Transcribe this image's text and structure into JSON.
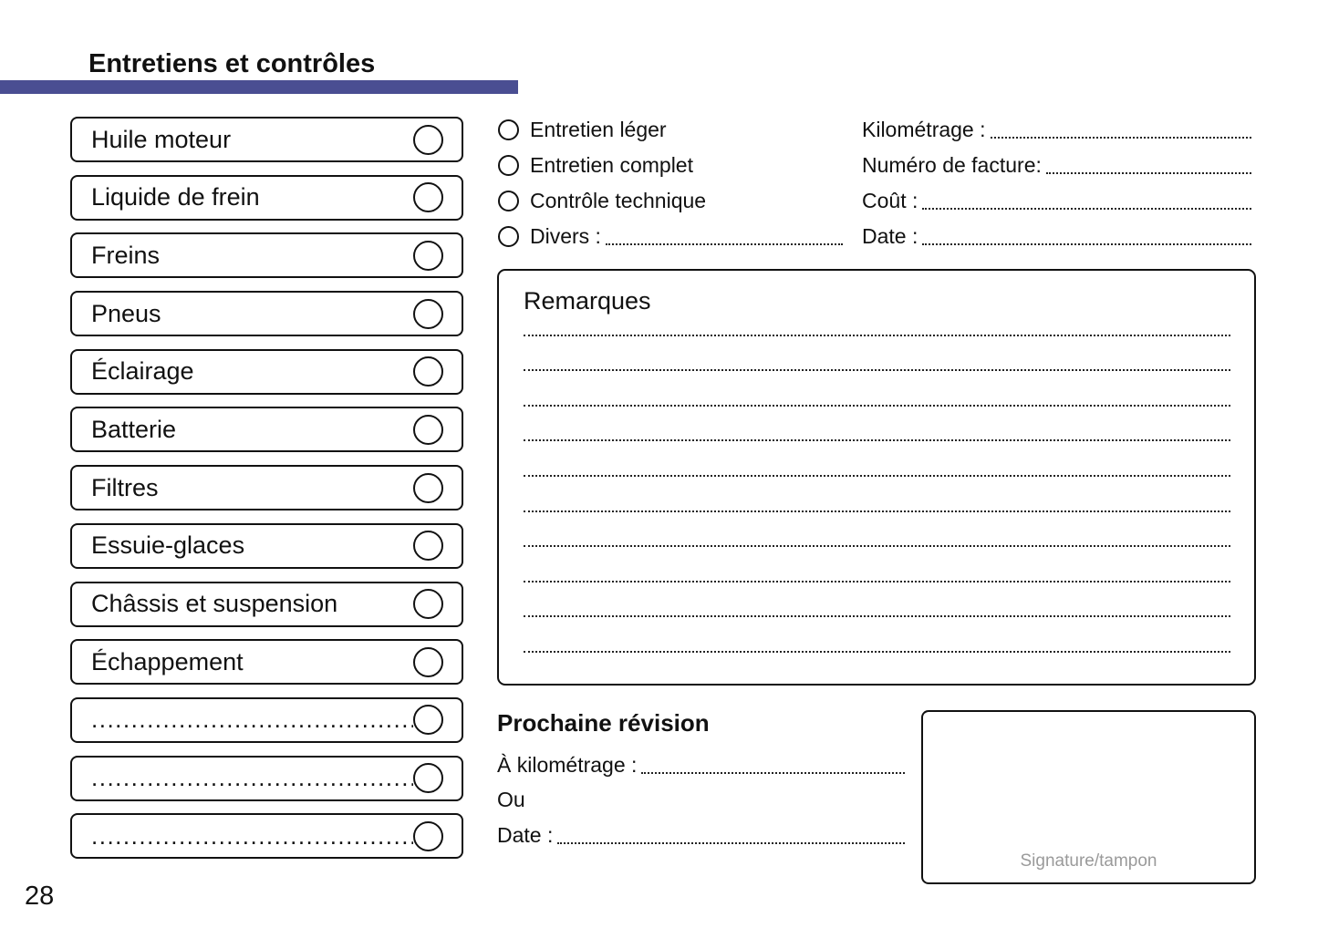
{
  "page": {
    "title": "Entretiens et contrôles",
    "page_number": "28"
  },
  "theme": {
    "accent_bar_color": "#4a4e92",
    "text_color": "#111111",
    "muted_color": "#9a9a9a"
  },
  "checklist": {
    "items": [
      {
        "label": "Huile moteur",
        "blank": false
      },
      {
        "label": "Liquide de frein",
        "blank": false
      },
      {
        "label": "Freins",
        "blank": false
      },
      {
        "label": "Pneus",
        "blank": false
      },
      {
        "label": "Éclairage",
        "blank": false
      },
      {
        "label": "Batterie",
        "blank": false
      },
      {
        "label": "Filtres",
        "blank": false
      },
      {
        "label": "Essuie-glaces",
        "blank": false
      },
      {
        "label": "Châssis et suspension",
        "blank": false
      },
      {
        "label": "Échappement",
        "blank": false
      },
      {
        "label": "...............................................",
        "blank": true
      },
      {
        "label": "...............................................",
        "blank": true
      },
      {
        "label": "...............................................",
        "blank": true
      }
    ]
  },
  "service_type": {
    "options": [
      {
        "label": "Entretien léger",
        "has_line": false
      },
      {
        "label": "Entretien complet",
        "has_line": false
      },
      {
        "label": "Contrôle technique",
        "has_line": false
      },
      {
        "label": "Divers :",
        "has_line": true
      }
    ]
  },
  "service_info": {
    "fields": [
      {
        "label": "Kilométrage :"
      },
      {
        "label": "Numéro de facture:"
      },
      {
        "label": "Coût :"
      },
      {
        "label": "Date :"
      }
    ]
  },
  "remarks": {
    "title": "Remarques",
    "line_count": 10
  },
  "next_service": {
    "title": "Prochaine révision",
    "rows": [
      {
        "label": "À kilométrage :",
        "has_line": true
      },
      {
        "label": "Ou",
        "has_line": false
      },
      {
        "label": "Date :",
        "has_line": true
      }
    ]
  },
  "signature": {
    "label": "Signature/tampon"
  }
}
